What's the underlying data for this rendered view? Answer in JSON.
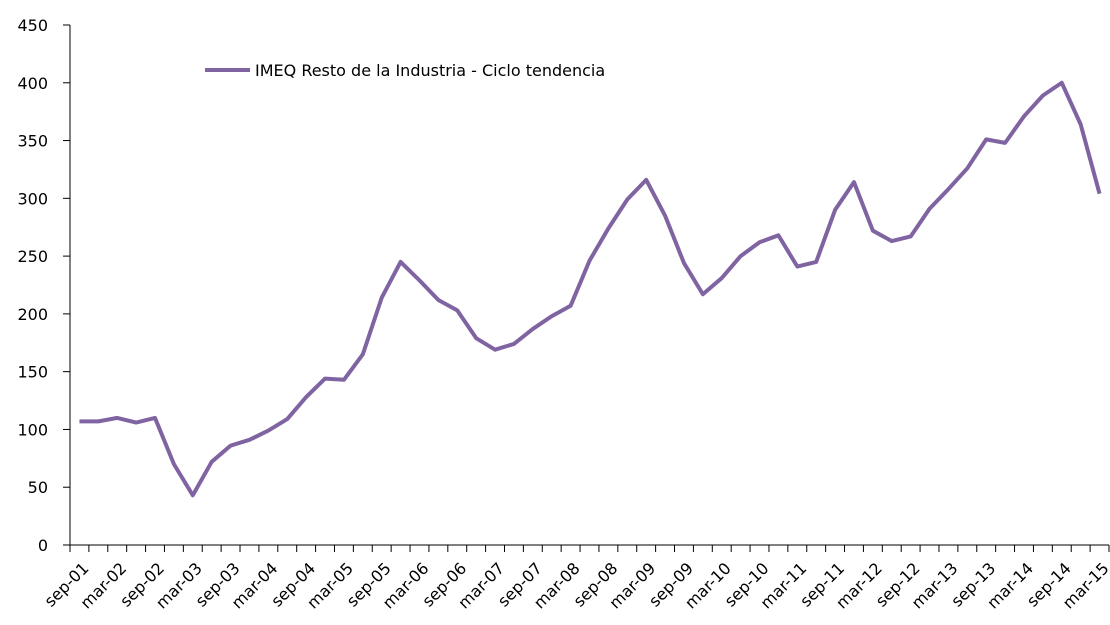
{
  "chart_data": {
    "type": "line",
    "categories": [
      "sep-01",
      null,
      "mar-02",
      null,
      "sep-02",
      null,
      "mar-03",
      null,
      "sep-03",
      null,
      "mar-04",
      null,
      "sep-04",
      null,
      "mar-05",
      null,
      "sep-05",
      null,
      "mar-06",
      null,
      "sep-06",
      null,
      "mar-07",
      null,
      "sep-07",
      null,
      "mar-08",
      null,
      "sep-08",
      null,
      "mar-09",
      null,
      "sep-09",
      null,
      "mar-10",
      null,
      "sep-10",
      null,
      "mar-11",
      null,
      "sep-11",
      null,
      "mar-12",
      null,
      "sep-12",
      null,
      "mar-13",
      null,
      "sep-13",
      null,
      "mar-14",
      null,
      "sep-14",
      null,
      "mar-15"
    ],
    "series": [
      {
        "name": "IMEQ Resto de la Industria - Ciclo tendencia",
        "color": "#8064a2",
        "values": [
          107,
          107,
          110,
          106,
          110,
          70,
          43,
          72,
          86,
          91,
          99,
          109,
          128,
          144,
          143,
          165,
          214,
          245,
          229,
          212,
          203,
          179,
          169,
          174,
          187,
          198,
          207,
          246,
          274,
          299,
          316,
          285,
          244,
          217,
          231,
          250,
          262,
          268,
          241,
          245,
          290,
          314,
          272,
          263,
          267,
          291,
          308,
          326,
          351,
          348,
          371,
          389,
          400,
          364,
          304
        ]
      }
    ],
    "ylim": [
      0,
      450
    ],
    "yticks": [
      0,
      50,
      100,
      150,
      200,
      250,
      300,
      350,
      400,
      450
    ],
    "grid": false,
    "legend": "top-left"
  }
}
